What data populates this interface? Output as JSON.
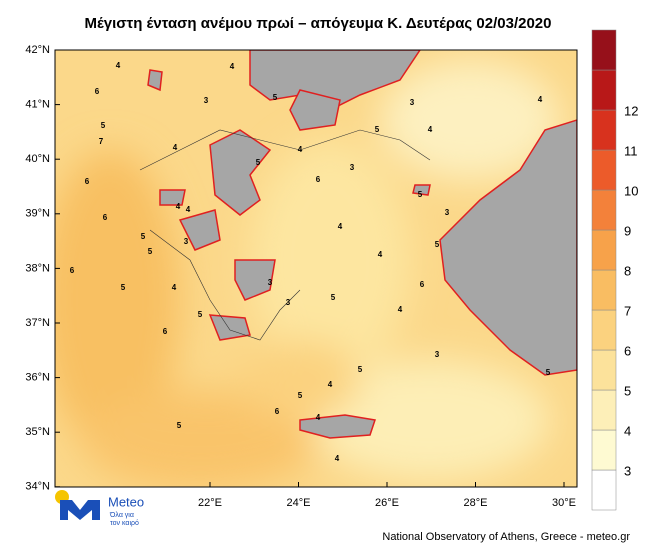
{
  "header": {
    "title": "Μέγιστη ένταση ανέμου πρωί – απόγευμα Κ. Δευτέρας 02/03/2020"
  },
  "map": {
    "lat_labels": [
      "42°N",
      "41°N",
      "40°N",
      "39°N",
      "38°N",
      "37°N",
      "36°N",
      "35°N",
      "34°N"
    ],
    "lon_labels": [
      "22°E",
      "24°E",
      "26°E",
      "28°E",
      "30°E"
    ],
    "contour_labels": [
      "4",
      "6",
      "5",
      "7",
      "6",
      "6",
      "5",
      "6",
      "5",
      "4",
      "4",
      "3",
      "4",
      "5",
      "4",
      "3",
      "4",
      "5",
      "6",
      "5",
      "5",
      "6",
      "4",
      "3",
      "4",
      "3",
      "3",
      "5",
      "4",
      "5",
      "3",
      "5",
      "5",
      "6",
      "4",
      "5",
      "4",
      "3",
      "5",
      "4",
      "3",
      "4",
      "4",
      "5",
      "6",
      "5",
      "4"
    ]
  },
  "colorbar": {
    "labels": [
      "3",
      "4",
      "5",
      "6",
      "7",
      "8",
      "9",
      "10",
      "11",
      "12"
    ],
    "colors": [
      "#ffffff",
      "#fefad2",
      "#fdefb8",
      "#fce29b",
      "#fbd27f",
      "#f9bd62",
      "#f7a24a",
      "#f3813a",
      "#ec5b2a",
      "#d8321e",
      "#b81818",
      "#96101a"
    ]
  },
  "logo": {
    "name": "Meteo",
    "slogan_1": "Όλα για",
    "slogan_2": "τον καιρό"
  },
  "footer": {
    "credit": "National Observatory of Athens, Greece - meteo.gr"
  }
}
